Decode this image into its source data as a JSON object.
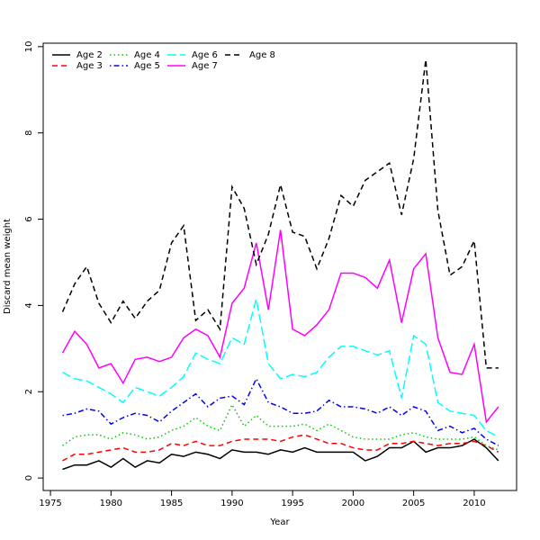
{
  "chart_data": {
    "type": "line",
    "xlabel": "Year",
    "ylabel": "Discard mean weight",
    "x": [
      1976,
      1977,
      1978,
      1979,
      1980,
      1981,
      1982,
      1983,
      1984,
      1985,
      1986,
      1987,
      1988,
      1989,
      1990,
      1991,
      1992,
      1993,
      1994,
      1995,
      1996,
      1997,
      1998,
      1999,
      2000,
      2001,
      2002,
      2003,
      2004,
      2005,
      2006,
      2007,
      2008,
      2009,
      2010,
      2011,
      2012
    ],
    "xlim": [
      1974.4,
      2013.5
    ],
    "xticks": [
      1975,
      1980,
      1985,
      1990,
      1995,
      2000,
      2005,
      2010
    ],
    "ylim": [
      -0.29,
      10.08
    ],
    "yticks": [
      0,
      2,
      4,
      6,
      8,
      10
    ],
    "legend": "top-left",
    "series": [
      {
        "name": "Age 2",
        "color": "#000000",
        "linestyle": "solid",
        "values": [
          0.2,
          0.3,
          0.3,
          0.4,
          0.25,
          0.45,
          0.25,
          0.4,
          0.35,
          0.55,
          0.5,
          0.6,
          0.55,
          0.45,
          0.65,
          0.6,
          0.6,
          0.55,
          0.65,
          0.6,
          0.7,
          0.6,
          0.6,
          0.6,
          0.6,
          0.4,
          0.5,
          0.7,
          0.7,
          0.85,
          0.6,
          0.7,
          0.7,
          0.75,
          0.9,
          0.7,
          0.4
        ]
      },
      {
        "name": "Age 3",
        "color": "#ff0000",
        "linestyle": "dashed",
        "values": [
          0.4,
          0.55,
          0.55,
          0.6,
          0.65,
          0.7,
          0.6,
          0.6,
          0.65,
          0.8,
          0.75,
          0.85,
          0.75,
          0.75,
          0.85,
          0.9,
          0.9,
          0.9,
          0.85,
          0.95,
          1.0,
          0.9,
          0.8,
          0.8,
          0.7,
          0.65,
          0.65,
          0.8,
          0.8,
          0.85,
          0.8,
          0.75,
          0.8,
          0.8,
          0.85,
          0.75,
          0.6
        ]
      },
      {
        "name": "Age 4",
        "color": "#00cd00",
        "linestyle": "dotted",
        "values": [
          0.75,
          0.95,
          1.0,
          1.0,
          0.9,
          1.05,
          1.0,
          0.9,
          0.95,
          1.1,
          1.2,
          1.4,
          1.2,
          1.1,
          1.7,
          1.2,
          1.45,
          1.2,
          1.2,
          1.2,
          1.25,
          1.1,
          1.25,
          1.1,
          0.95,
          0.9,
          0.9,
          0.9,
          1.0,
          1.05,
          0.95,
          0.9,
          0.9,
          0.9,
          0.95,
          0.75,
          0.65
        ]
      },
      {
        "name": "Age 5",
        "color": "#0000ff",
        "linestyle": "dotdash",
        "values": [
          1.45,
          1.5,
          1.6,
          1.55,
          1.25,
          1.4,
          1.5,
          1.45,
          1.3,
          1.55,
          1.75,
          1.95,
          1.65,
          1.85,
          1.9,
          1.7,
          2.3,
          1.75,
          1.65,
          1.5,
          1.5,
          1.55,
          1.8,
          1.65,
          1.65,
          1.6,
          1.5,
          1.65,
          1.45,
          1.65,
          1.55,
          1.1,
          1.2,
          1.05,
          1.15,
          0.9,
          0.75
        ]
      },
      {
        "name": "Age 6",
        "color": "#00ffff",
        "linestyle": "longdash",
        "values": [
          2.45,
          2.3,
          2.25,
          2.1,
          1.95,
          1.75,
          2.1,
          2.0,
          1.9,
          2.1,
          2.35,
          2.9,
          2.75,
          2.65,
          3.25,
          3.1,
          4.15,
          2.65,
          2.3,
          2.4,
          2.35,
          2.45,
          2.8,
          3.05,
          3.05,
          2.95,
          2.85,
          2.95,
          1.85,
          3.3,
          3.1,
          1.75,
          1.55,
          1.5,
          1.45,
          1.1,
          0.95
        ]
      },
      {
        "name": "Age 7",
        "color": "#ff00ff",
        "linestyle": "solid",
        "values": [
          2.9,
          3.4,
          3.1,
          2.55,
          2.65,
          2.2,
          2.75,
          2.8,
          2.7,
          2.8,
          3.25,
          3.45,
          3.3,
          2.8,
          4.05,
          4.4,
          5.45,
          3.9,
          5.75,
          3.45,
          3.3,
          3.55,
          3.9,
          4.75,
          4.75,
          4.65,
          4.4,
          5.05,
          3.6,
          4.85,
          5.2,
          3.25,
          2.45,
          2.4,
          3.1,
          1.3,
          1.65
        ]
      },
      {
        "name": "Age 8",
        "color": "#000000",
        "linestyle": "dashed",
        "values": [
          3.85,
          4.5,
          4.9,
          4.05,
          3.6,
          4.1,
          3.7,
          4.1,
          4.35,
          5.45,
          5.85,
          3.65,
          3.9,
          3.45,
          6.75,
          6.25,
          4.95,
          5.65,
          6.8,
          5.7,
          5.6,
          4.85,
          5.55,
          6.55,
          6.3,
          6.9,
          7.1,
          7.3,
          6.1,
          7.4,
          9.7,
          6.2,
          4.7,
          4.9,
          5.5,
          2.55,
          2.55
        ]
      }
    ]
  }
}
